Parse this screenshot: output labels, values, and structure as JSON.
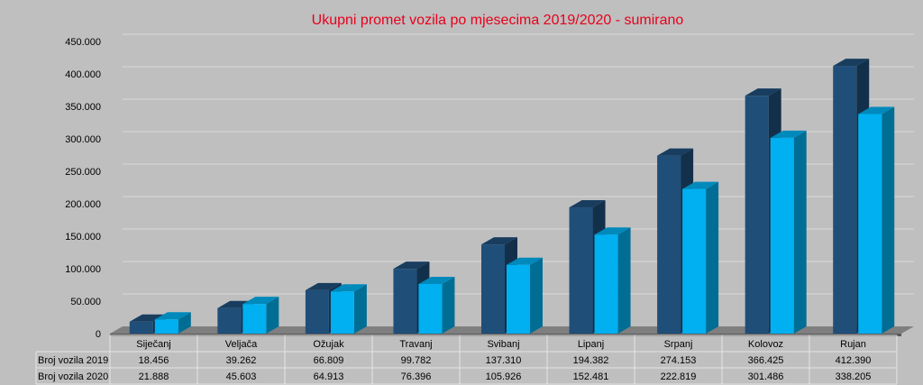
{
  "chart_data": {
    "type": "bar",
    "title": "Ukupni promet vozila po mjesecima 2019/2020 - sumirano",
    "categories": [
      "Siječanj",
      "Veljača",
      "Ožujak",
      "Travanj",
      "Svibanj",
      "Lipanj",
      "Srpanj",
      "Kolovoz",
      "Rujan"
    ],
    "series": [
      {
        "name": "Broj vozila 2019",
        "values": [
          18456,
          39262,
          66809,
          99782,
          137310,
          194382,
          274153,
          366425,
          412390
        ],
        "labels": [
          "18.456",
          "39.262",
          "66.809",
          "99.782",
          "137.310",
          "194.382",
          "274.153",
          "366.425",
          "412.390"
        ],
        "color": "#1f4e79"
      },
      {
        "name": "Broj vozila 2020",
        "values": [
          21888,
          45603,
          64913,
          76396,
          105926,
          152481,
          222819,
          301486,
          338205
        ],
        "labels": [
          "21.888",
          "45.603",
          "64.913",
          "76.396",
          "105.926",
          "152.481",
          "222.819",
          "301.486",
          "338.205"
        ],
        "color": "#00b0f0"
      }
    ],
    "ylim": [
      0,
      450000
    ],
    "yticks": [
      "0",
      "50.000",
      "100.000",
      "150.000",
      "200.000",
      "250.000",
      "300.000",
      "350.000",
      "400.000",
      "450.000"
    ],
    "grid": true,
    "legend": "data-table"
  }
}
